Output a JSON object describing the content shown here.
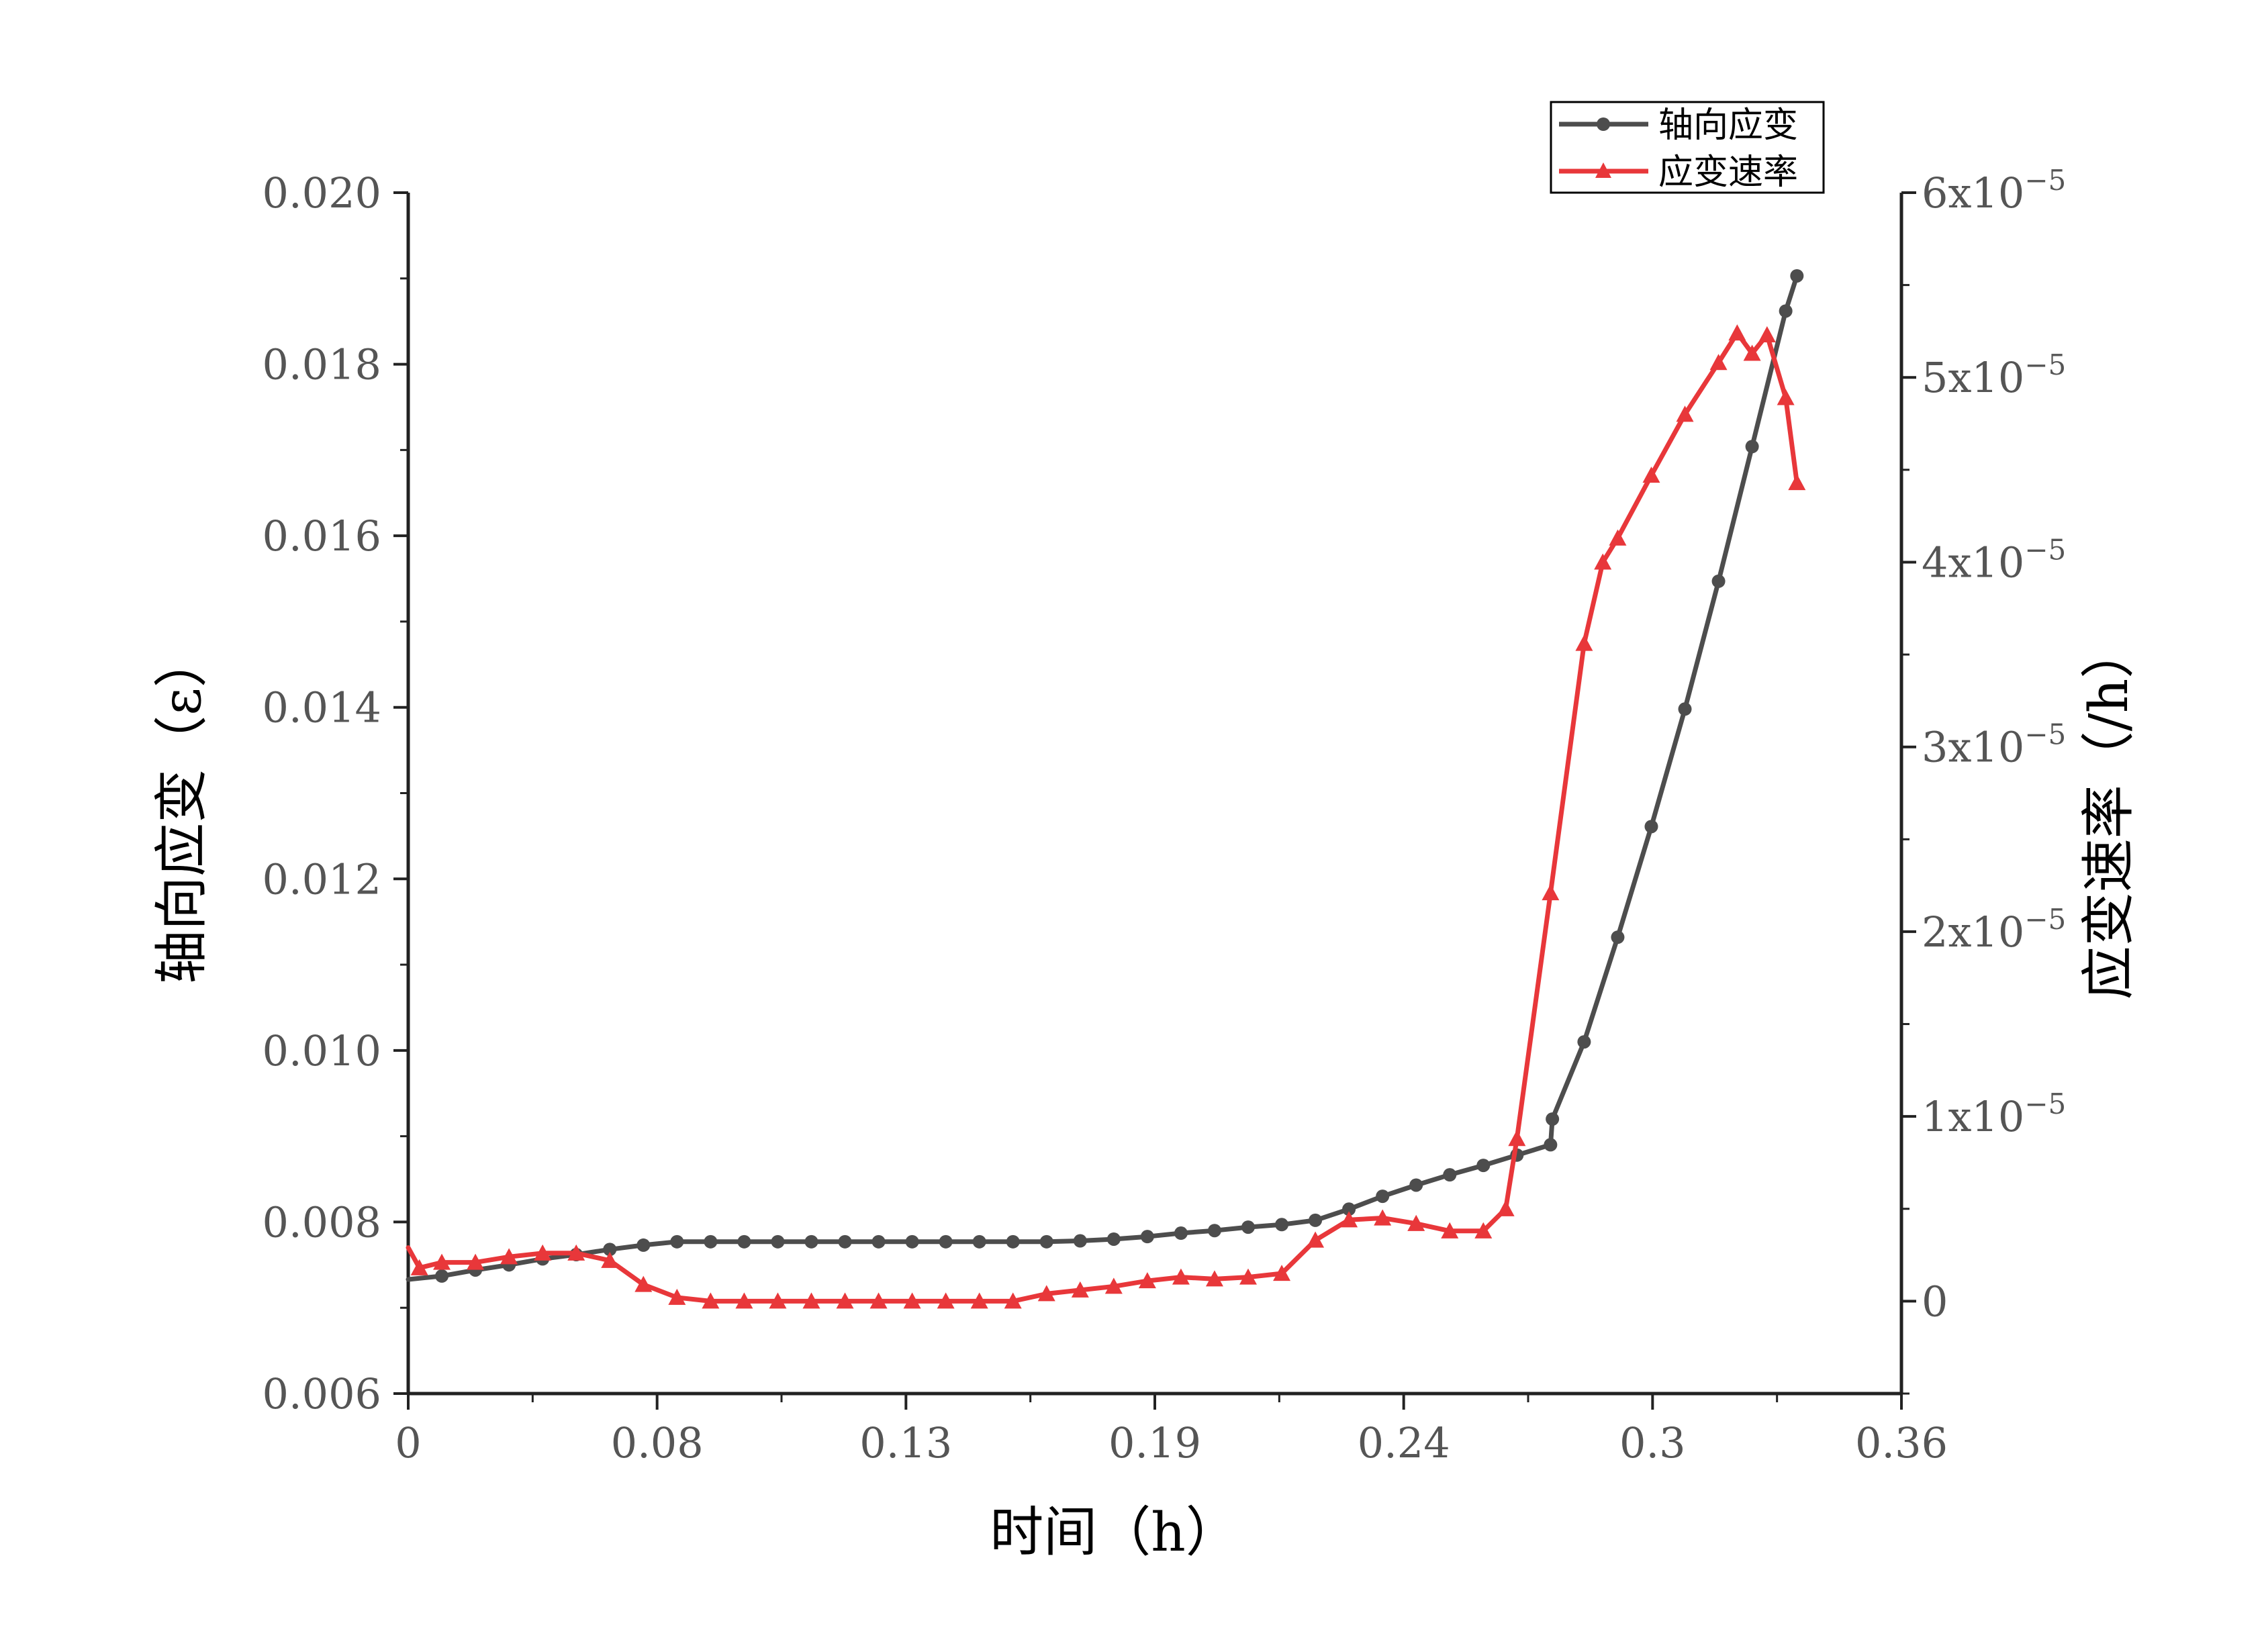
{
  "chart_data": {
    "type": "line",
    "xlabel": "时间（h）",
    "ylabel": "轴向应变（ε）",
    "y2label": "应变速率（/h）",
    "x_ticks": [
      "0",
      "0.08",
      "0.13",
      "0.19",
      "0.24",
      "0.3",
      "0.36"
    ],
    "y_ticks": [
      "0.006",
      "0.008",
      "0.010",
      "0.012",
      "0.014",
      "0.016",
      "0.018",
      "0.020"
    ],
    "y2_ticks": [
      {
        "mant": "0",
        "exp": ""
      },
      {
        "mant": "1x10",
        "exp": "−5"
      },
      {
        "mant": "2x10",
        "exp": "−5"
      },
      {
        "mant": "3x10",
        "exp": "−5"
      },
      {
        "mant": "4x10",
        "exp": "−5"
      },
      {
        "mant": "5x10",
        "exp": "−5"
      },
      {
        "mant": "6x10",
        "exp": "−5"
      }
    ],
    "xlim": [
      0,
      0.4
    ],
    "ylim": [
      0.006,
      0.02
    ],
    "y2lim": [
      -5e-06,
      6e-05
    ],
    "legend_position": "top-right",
    "series": [
      {
        "name": "轴向应变",
        "axis": "left",
        "color": "#4d4d4d",
        "marker": "circle",
        "x": [
          0.0,
          0.009,
          0.018,
          0.027,
          0.036,
          0.045,
          0.054,
          0.063,
          0.072,
          0.081,
          0.09,
          0.099,
          0.108,
          0.117,
          0.126,
          0.135,
          0.144,
          0.153,
          0.162,
          0.171,
          0.18,
          0.189,
          0.198,
          0.207,
          0.216,
          0.225,
          0.234,
          0.243,
          0.252,
          0.261,
          0.27,
          0.279,
          0.288,
          0.297,
          0.306,
          0.3065,
          0.315,
          0.324,
          0.333,
          0.342,
          0.351,
          0.36,
          0.369,
          0.372
        ],
        "y": [
          0.00733,
          0.00737,
          0.00744,
          0.0075,
          0.00757,
          0.00762,
          0.00768,
          0.00773,
          0.00777,
          0.00777,
          0.00777,
          0.00777,
          0.00777,
          0.00777,
          0.00777,
          0.00777,
          0.00777,
          0.00777,
          0.00777,
          0.00777,
          0.00778,
          0.0078,
          0.00783,
          0.00787,
          0.0079,
          0.00794,
          0.00797,
          0.00802,
          0.00815,
          0.0083,
          0.00843,
          0.00855,
          0.00866,
          0.00878,
          0.0089,
          0.0092,
          0.0101,
          0.01132,
          0.01261,
          0.01398,
          0.01547,
          0.01704,
          0.01862,
          0.01903
        ]
      },
      {
        "name": "应变速率",
        "axis": "right",
        "color": "#e8373a",
        "marker": "triangle",
        "x": [
          0.0,
          0.003,
          0.009,
          0.018,
          0.027,
          0.036,
          0.045,
          0.054,
          0.063,
          0.072,
          0.081,
          0.09,
          0.099,
          0.108,
          0.117,
          0.126,
          0.135,
          0.144,
          0.153,
          0.162,
          0.171,
          0.18,
          0.189,
          0.198,
          0.207,
          0.216,
          0.225,
          0.234,
          0.243,
          0.252,
          0.261,
          0.27,
          0.279,
          0.288,
          0.294,
          0.297,
          0.306,
          0.315,
          0.32,
          0.324,
          0.333,
          0.342,
          0.351,
          0.356,
          0.36,
          0.364,
          0.369,
          0.372
        ],
        "y": [
          2.9e-06,
          1.8e-06,
          2.1e-06,
          2.1e-06,
          2.4e-06,
          2.6e-06,
          2.6e-06,
          2.2e-06,
          9e-07,
          2e-07,
          0.0,
          0.0,
          0.0,
          0.0,
          0.0,
          0.0,
          0.0,
          0.0,
          0.0,
          0.0,
          4e-07,
          6e-07,
          8e-07,
          1.1e-06,
          1.3e-06,
          1.2e-06,
          1.3e-06,
          1.5e-06,
          3.3e-06,
          4.4e-06,
          4.5e-06,
          4.2e-06,
          3.8e-06,
          3.8e-06,
          5e-06,
          8.8e-06,
          2.21e-05,
          3.56e-05,
          4e-05,
          4.13e-05,
          4.47e-05,
          4.8e-05,
          5.08e-05,
          5.24e-05,
          5.13e-05,
          5.23e-05,
          4.89e-05,
          4.43e-05
        ]
      }
    ]
  }
}
